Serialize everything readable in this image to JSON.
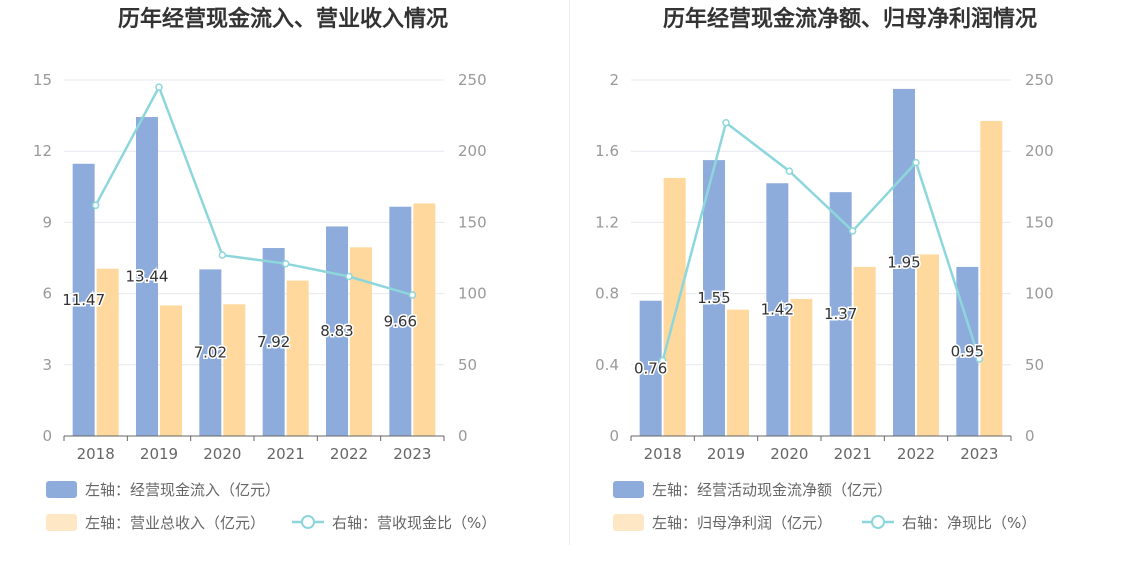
{
  "colors": {
    "bar_primary": "#8eacdb",
    "bar_secondary": "#fed89c",
    "bar_secondary_legend": "#fde7c4",
    "line": "#8dd7dc",
    "grid": "#e6e8f0",
    "axis": "#666666"
  },
  "chart_data": [
    {
      "type": "bar",
      "title": "历年经营现金流入、营业收入情况",
      "categories": [
        "2018",
        "2019",
        "2020",
        "2021",
        "2022",
        "2023"
      ],
      "left_axis": {
        "ylim": [
          0,
          15
        ],
        "ticks": [
          "0",
          "3",
          "6",
          "9",
          "12",
          "15"
        ]
      },
      "right_axis": {
        "ylim": [
          0,
          250
        ],
        "ticks": [
          "0",
          "50",
          "100",
          "150",
          "200",
          "250"
        ]
      },
      "series": [
        {
          "name": "左轴：经营现金流入（亿元）",
          "kind": "bar",
          "axis": "left",
          "values": [
            11.47,
            13.44,
            7.02,
            7.92,
            8.83,
            9.66
          ],
          "labels": [
            "11.47",
            "13.44",
            "7.02",
            "7.92",
            "8.83",
            "9.66"
          ]
        },
        {
          "name": "左轴：营业总收入（亿元）",
          "kind": "bar",
          "axis": "left",
          "values": [
            7.05,
            5.5,
            5.55,
            6.55,
            7.95,
            9.8
          ]
        },
        {
          "name": "右轴：营收现金比（%）",
          "kind": "line",
          "axis": "right",
          "values": [
            162,
            245,
            127,
            121,
            112,
            99
          ]
        }
      ]
    },
    {
      "type": "bar",
      "title": "历年经营现金流净额、归母净利润情况",
      "categories": [
        "2018",
        "2019",
        "2020",
        "2021",
        "2022",
        "2023"
      ],
      "left_axis": {
        "ylim": [
          0,
          2
        ],
        "ticks": [
          "0",
          "0.4",
          "0.8",
          "1.2",
          "1.6",
          "2"
        ]
      },
      "right_axis": {
        "ylim": [
          0,
          250
        ],
        "ticks": [
          "0",
          "50",
          "100",
          "150",
          "200",
          "250"
        ]
      },
      "series": [
        {
          "name": "左轴：经营活动现金流净额（亿元）",
          "kind": "bar",
          "axis": "left",
          "values": [
            0.76,
            1.55,
            1.42,
            1.37,
            1.95,
            0.95
          ],
          "labels": [
            "0.76",
            "1.55",
            "1.42",
            "1.37",
            "1.95",
            "0.95"
          ]
        },
        {
          "name": "左轴：归母净利润（亿元）",
          "kind": "bar",
          "axis": "left",
          "values": [
            1.45,
            0.71,
            0.77,
            0.95,
            1.02,
            1.77
          ]
        },
        {
          "name": "右轴：净现比（%）",
          "kind": "line",
          "axis": "right",
          "values": [
            53,
            220,
            186,
            144,
            192,
            54
          ]
        }
      ]
    }
  ]
}
